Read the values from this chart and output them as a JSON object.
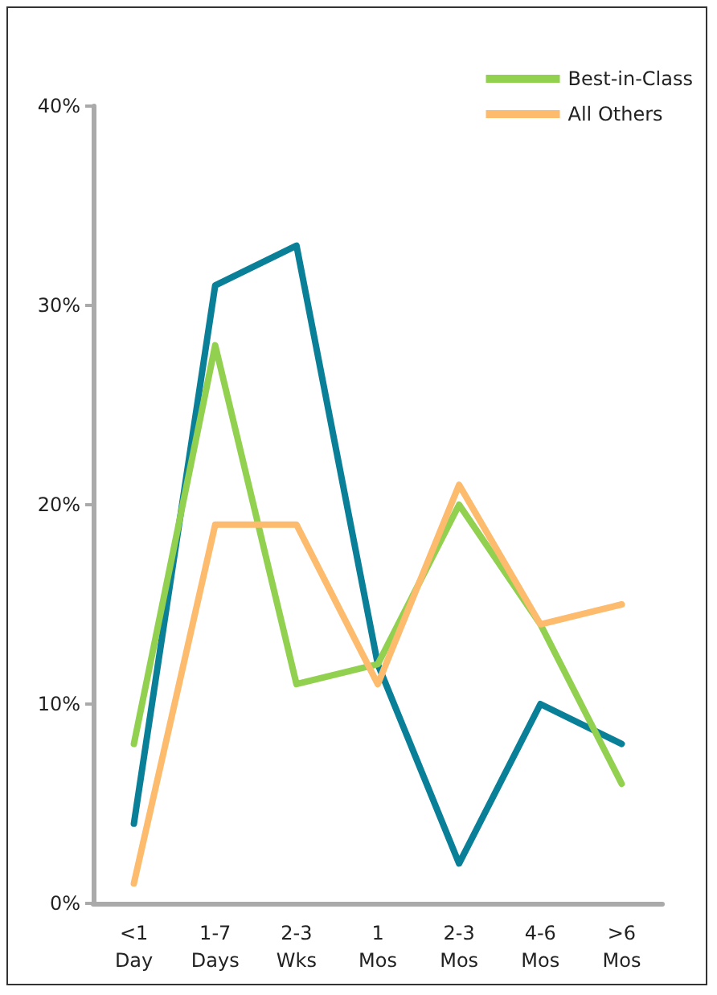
{
  "chart_data": {
    "type": "line",
    "categories": [
      "<1\nDay",
      "1-7\nDays",
      "2-3\nWks",
      "1\nMos",
      "2-3\nMos",
      "4-6\nMos",
      ">6\nMos"
    ],
    "series": [
      {
        "color": "#0a7f98",
        "values": [
          4,
          31,
          33,
          12,
          2,
          10,
          8
        ]
      },
      {
        "name": "Best-in-Class",
        "color": "#92d050",
        "values": [
          8,
          28,
          11,
          12,
          20,
          14,
          6
        ]
      },
      {
        "name": "All Others",
        "color": "#fdbb6e",
        "values": [
          1,
          19,
          19,
          11,
          21,
          14,
          15
        ]
      }
    ],
    "ylim": [
      0,
      40
    ],
    "yticks": [
      {
        "value": 0,
        "label": "0%"
      },
      {
        "value": 10,
        "label": "10%"
      },
      {
        "value": 20,
        "label": "20%"
      },
      {
        "value": 30,
        "label": "30%"
      },
      {
        "value": 40,
        "label": "40%"
      }
    ],
    "grid": false,
    "legend": "top right",
    "marker": "none",
    "line_style": "solid"
  }
}
